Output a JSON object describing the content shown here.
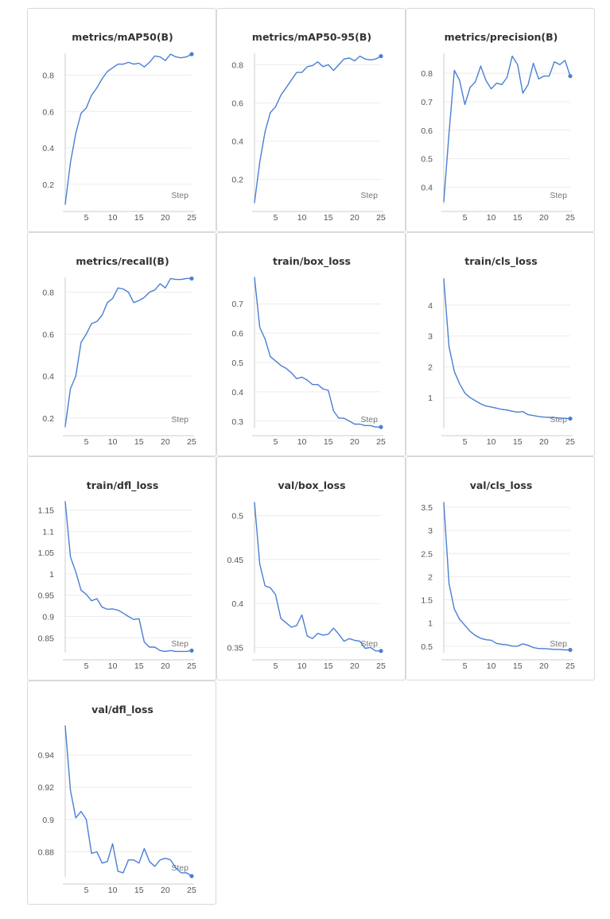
{
  "theme": {
    "line_color": "#4a7fd4",
    "grid_color": "#ececec",
    "axis_color": "#cccccc"
  },
  "chart_data": [
    {
      "type": "line",
      "title": "metrics/mAP50(B)",
      "xlabel": "Step",
      "x": [
        1,
        2,
        3,
        4,
        5,
        6,
        7,
        8,
        9,
        10,
        11,
        12,
        13,
        14,
        15,
        16,
        17,
        18,
        19,
        20,
        21,
        22,
        23,
        24,
        25
      ],
      "y": [
        0.09,
        0.32,
        0.48,
        0.59,
        0.62,
        0.69,
        0.73,
        0.78,
        0.82,
        0.84,
        0.86,
        0.86,
        0.87,
        0.86,
        0.865,
        0.845,
        0.87,
        0.905,
        0.9,
        0.88,
        0.915,
        0.9,
        0.895,
        0.9,
        0.915
      ],
      "xlim": [
        1,
        25
      ],
      "ylim": [
        0.09,
        0.92
      ],
      "xticks": [
        5,
        10,
        15,
        20,
        25
      ],
      "yticks": [
        0.2,
        0.4,
        0.6,
        0.8
      ],
      "xtick_labels": [
        "5",
        "10",
        "15",
        "20",
        "25"
      ],
      "ytick_labels": [
        "0.2",
        "0.4",
        "0.6",
        "0.8"
      ]
    },
    {
      "type": "line",
      "title": "metrics/mAP50-95(B)",
      "xlabel": "Step",
      "x": [
        1,
        2,
        3,
        4,
        5,
        6,
        7,
        8,
        9,
        10,
        11,
        12,
        13,
        14,
        15,
        16,
        17,
        18,
        19,
        20,
        21,
        22,
        23,
        24,
        25
      ],
      "y": [
        0.08,
        0.29,
        0.45,
        0.55,
        0.58,
        0.64,
        0.68,
        0.72,
        0.76,
        0.76,
        0.79,
        0.795,
        0.815,
        0.79,
        0.8,
        0.77,
        0.8,
        0.83,
        0.835,
        0.82,
        0.845,
        0.83,
        0.825,
        0.83,
        0.845
      ],
      "xlim": [
        1,
        25
      ],
      "ylim": [
        0.07,
        0.86
      ],
      "xticks": [
        5,
        10,
        15,
        20,
        25
      ],
      "yticks": [
        0.2,
        0.4,
        0.6,
        0.8
      ],
      "xtick_labels": [
        "5",
        "10",
        "15",
        "20",
        "25"
      ],
      "ytick_labels": [
        "0.2",
        "0.4",
        "0.6",
        "0.8"
      ]
    },
    {
      "type": "line",
      "title": "metrics/precision(B)",
      "xlabel": "Step",
      "x": [
        1,
        2,
        3,
        4,
        5,
        6,
        7,
        8,
        9,
        10,
        11,
        12,
        13,
        14,
        15,
        16,
        17,
        18,
        19,
        20,
        21,
        22,
        23,
        24,
        25
      ],
      "y": [
        0.35,
        0.59,
        0.81,
        0.775,
        0.69,
        0.75,
        0.77,
        0.825,
        0.775,
        0.745,
        0.765,
        0.76,
        0.785,
        0.86,
        0.83,
        0.73,
        0.76,
        0.835,
        0.78,
        0.79,
        0.79,
        0.84,
        0.83,
        0.845,
        0.79
      ],
      "xlim": [
        1,
        25
      ],
      "ylim": [
        0.34,
        0.87
      ],
      "xticks": [
        5,
        10,
        15,
        20,
        25
      ],
      "yticks": [
        0.4,
        0.5,
        0.6,
        0.7,
        0.8
      ],
      "xtick_labels": [
        "5",
        "10",
        "15",
        "20",
        "25"
      ],
      "ytick_labels": [
        "0.4",
        "0.5",
        "0.6",
        "0.7",
        "0.8"
      ]
    },
    {
      "type": "line",
      "title": "metrics/recall(B)",
      "xlabel": "Step",
      "x": [
        1,
        2,
        3,
        4,
        5,
        6,
        7,
        8,
        9,
        10,
        11,
        12,
        13,
        14,
        15,
        16,
        17,
        18,
        19,
        20,
        21,
        22,
        23,
        24,
        25
      ],
      "y": [
        0.16,
        0.34,
        0.4,
        0.56,
        0.6,
        0.65,
        0.66,
        0.69,
        0.75,
        0.77,
        0.82,
        0.815,
        0.8,
        0.75,
        0.76,
        0.775,
        0.8,
        0.81,
        0.84,
        0.82,
        0.865,
        0.86,
        0.86,
        0.865,
        0.865
      ],
      "xlim": [
        1,
        25
      ],
      "ylim": [
        0.15,
        0.87
      ],
      "xticks": [
        5,
        10,
        15,
        20,
        25
      ],
      "yticks": [
        0.2,
        0.4,
        0.6,
        0.8
      ],
      "xtick_labels": [
        "5",
        "10",
        "15",
        "20",
        "25"
      ],
      "ytick_labels": [
        "0.2",
        "0.4",
        "0.6",
        "0.8"
      ]
    },
    {
      "type": "line",
      "title": "train/box_loss",
      "xlabel": "Step",
      "x": [
        1,
        2,
        3,
        4,
        5,
        6,
        7,
        8,
        9,
        10,
        11,
        12,
        13,
        14,
        15,
        16,
        17,
        18,
        19,
        20,
        21,
        22,
        23,
        24,
        25
      ],
      "y": [
        0.79,
        0.62,
        0.58,
        0.52,
        0.505,
        0.49,
        0.48,
        0.465,
        0.445,
        0.45,
        0.44,
        0.425,
        0.425,
        0.41,
        0.405,
        0.335,
        0.31,
        0.31,
        0.3,
        0.29,
        0.29,
        0.285,
        0.285,
        0.28,
        0.28
      ],
      "xlim": [
        1,
        25
      ],
      "ylim": [
        0.275,
        0.79
      ],
      "xticks": [
        5,
        10,
        15,
        20,
        25
      ],
      "yticks": [
        0.3,
        0.4,
        0.5,
        0.6,
        0.7
      ],
      "xtick_labels": [
        "5",
        "10",
        "15",
        "20",
        "25"
      ],
      "ytick_labels": [
        "0.3",
        "0.4",
        "0.5",
        "0.6",
        "0.7"
      ]
    },
    {
      "type": "line",
      "title": "train/cls_loss",
      "xlabel": "Step",
      "x": [
        1,
        2,
        3,
        4,
        5,
        6,
        7,
        8,
        9,
        10,
        11,
        12,
        13,
        14,
        15,
        16,
        17,
        18,
        19,
        20,
        21,
        22,
        23,
        24,
        25
      ],
      "y": [
        4.85,
        2.65,
        1.85,
        1.45,
        1.15,
        1.0,
        0.9,
        0.8,
        0.73,
        0.7,
        0.66,
        0.62,
        0.6,
        0.56,
        0.53,
        0.55,
        0.45,
        0.42,
        0.39,
        0.37,
        0.36,
        0.35,
        0.34,
        0.33,
        0.32
      ],
      "xlim": [
        1,
        25
      ],
      "ylim": [
        0.0,
        4.9
      ],
      "xticks": [
        5,
        10,
        15,
        20,
        25
      ],
      "yticks": [
        1,
        2,
        3,
        4
      ],
      "xtick_labels": [
        "5",
        "10",
        "15",
        "20",
        "25"
      ],
      "ytick_labels": [
        "1",
        "2",
        "3",
        "4"
      ]
    },
    {
      "type": "line",
      "title": "train/dfl_loss",
      "xlabel": "Step",
      "x": [
        1,
        2,
        3,
        4,
        5,
        6,
        7,
        8,
        9,
        10,
        11,
        12,
        13,
        14,
        15,
        16,
        17,
        18,
        19,
        20,
        21,
        22,
        23,
        24,
        25
      ],
      "y": [
        1.17,
        1.04,
        1.005,
        0.962,
        0.952,
        0.937,
        0.942,
        0.922,
        0.917,
        0.918,
        0.915,
        0.908,
        0.9,
        0.893,
        0.895,
        0.84,
        0.828,
        0.828,
        0.82,
        0.818,
        0.82,
        0.818,
        0.818,
        0.818,
        0.82
      ],
      "xlim": [
        1,
        25
      ],
      "ylim": [
        0.815,
        1.17
      ],
      "xticks": [
        5,
        10,
        15,
        20,
        25
      ],
      "yticks": [
        0.85,
        0.9,
        0.95,
        1,
        1.05,
        1.1,
        1.15
      ],
      "xtick_labels": [
        "5",
        "10",
        "15",
        "20",
        "25"
      ],
      "ytick_labels": [
        "0.85",
        "0.9",
        "0.95",
        "1",
        "1.05",
        "1.1",
        "1.15"
      ]
    },
    {
      "type": "line",
      "title": "val/box_loss",
      "xlabel": "Step",
      "x": [
        1,
        2,
        3,
        4,
        5,
        6,
        7,
        8,
        9,
        10,
        11,
        12,
        13,
        14,
        15,
        16,
        17,
        18,
        19,
        20,
        21,
        22,
        23,
        24,
        25
      ],
      "y": [
        0.515,
        0.445,
        0.42,
        0.418,
        0.41,
        0.383,
        0.378,
        0.373,
        0.375,
        0.387,
        0.363,
        0.36,
        0.366,
        0.364,
        0.365,
        0.372,
        0.365,
        0.357,
        0.36,
        0.358,
        0.357,
        0.349,
        0.35,
        0.346,
        0.346
      ],
      "xlim": [
        1,
        25
      ],
      "ylim": [
        0.344,
        0.516
      ],
      "xticks": [
        5,
        10,
        15,
        20,
        25
      ],
      "yticks": [
        0.35,
        0.4,
        0.45,
        0.5
      ],
      "xtick_labels": [
        "5",
        "10",
        "15",
        "20",
        "25"
      ],
      "ytick_labels": [
        "0.35",
        "0.4",
        "0.45",
        "0.5"
      ]
    },
    {
      "type": "line",
      "title": "val/cls_loss",
      "xlabel": "Step",
      "x": [
        1,
        2,
        3,
        4,
        5,
        6,
        7,
        8,
        9,
        10,
        11,
        12,
        13,
        14,
        15,
        16,
        17,
        18,
        19,
        20,
        21,
        22,
        23,
        24,
        25
      ],
      "y": [
        3.6,
        1.85,
        1.3,
        1.08,
        0.95,
        0.82,
        0.73,
        0.67,
        0.64,
        0.63,
        0.56,
        0.54,
        0.53,
        0.5,
        0.5,
        0.55,
        0.52,
        0.47,
        0.45,
        0.45,
        0.44,
        0.43,
        0.43,
        0.42,
        0.42
      ],
      "xlim": [
        1,
        25
      ],
      "ylim": [
        0.36,
        3.62
      ],
      "xticks": [
        5,
        10,
        15,
        20,
        25
      ],
      "yticks": [
        0.5,
        1,
        1.5,
        2,
        2.5,
        3,
        3.5
      ],
      "xtick_labels": [
        "5",
        "10",
        "15",
        "20",
        "25"
      ],
      "ytick_labels": [
        "0.5",
        "1",
        "1.5",
        "2",
        "2.5",
        "3",
        "3.5"
      ]
    },
    {
      "type": "line",
      "title": "val/dfl_loss",
      "xlabel": "Step",
      "x": [
        1,
        2,
        3,
        4,
        5,
        6,
        7,
        8,
        9,
        10,
        11,
        12,
        13,
        14,
        15,
        16,
        17,
        18,
        19,
        20,
        21,
        22,
        23,
        24,
        25
      ],
      "y": [
        0.958,
        0.918,
        0.901,
        0.905,
        0.9,
        0.879,
        0.88,
        0.873,
        0.874,
        0.885,
        0.868,
        0.867,
        0.875,
        0.875,
        0.873,
        0.882,
        0.874,
        0.871,
        0.875,
        0.876,
        0.875,
        0.87,
        0.867,
        0.867,
        0.865
      ],
      "xlim": [
        1,
        25
      ],
      "ylim": [
        0.8645,
        0.958
      ],
      "xticks": [
        5,
        10,
        15,
        20,
        25
      ],
      "yticks": [
        0.88,
        0.9,
        0.92,
        0.94
      ],
      "xtick_labels": [
        "5",
        "10",
        "15",
        "20",
        "25"
      ],
      "ytick_labels": [
        "0.88",
        "0.9",
        "0.92",
        "0.94"
      ]
    }
  ]
}
